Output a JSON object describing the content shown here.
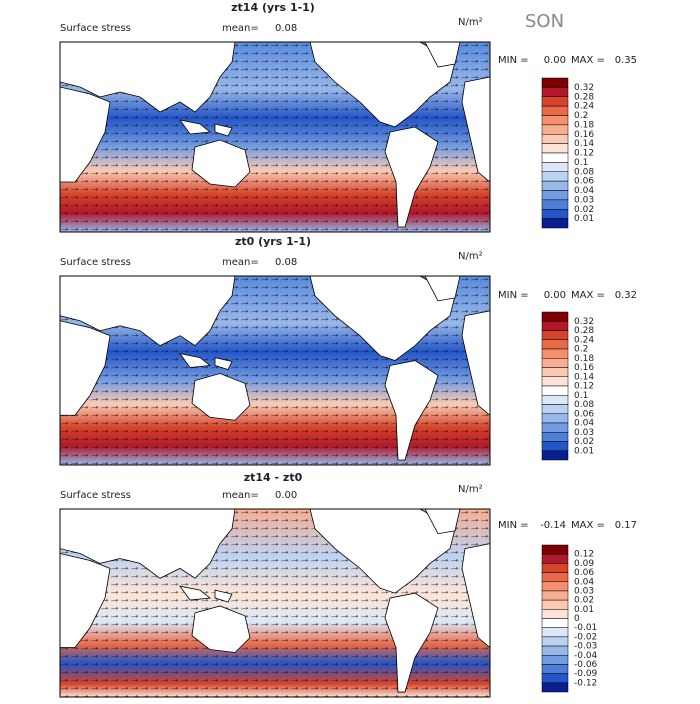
{
  "season": "SON",
  "panels": [
    {
      "title": "zt14 (yrs 1-1)",
      "subtitle": "Surface stress",
      "mean_label": "mean=",
      "mean": "0.08",
      "units": "N/m²",
      "min_label": "MIN =",
      "min": "0.00",
      "max_label": "MAX =",
      "max": "0.35",
      "colorbar": {
        "labels": [
          "0.32",
          "0.28",
          "0.24",
          "0.2",
          "0.18",
          "0.16",
          "0.14",
          "0.12",
          "0.1",
          "0.08",
          "0.06",
          "0.04",
          "0.03",
          "0.02",
          "0.01"
        ],
        "colors": [
          "#7f0000",
          "#b2182b",
          "#d6452b",
          "#ea6a48",
          "#f4906f",
          "#f8ae92",
          "#fbcab4",
          "#fde4d6",
          "#ffffff",
          "#dce8f8",
          "#bcd2f2",
          "#98b8ea",
          "#739ce2",
          "#4d7fd8",
          "#2456c8",
          "#0a1f8f"
        ]
      }
    },
    {
      "title": "zt0 (yrs 1-1)",
      "subtitle": "Surface stress",
      "mean_label": "mean=",
      "mean": "0.08",
      "units": "N/m²",
      "min_label": "MIN =",
      "min": "0.00",
      "max_label": "MAX =",
      "max": "0.32",
      "colorbar": {
        "labels": [
          "0.32",
          "0.28",
          "0.24",
          "0.2",
          "0.18",
          "0.16",
          "0.14",
          "0.12",
          "0.1",
          "0.08",
          "0.06",
          "0.04",
          "0.03",
          "0.02",
          "0.01"
        ],
        "colors": [
          "#7f0000",
          "#b2182b",
          "#d6452b",
          "#ea6a48",
          "#f4906f",
          "#f8ae92",
          "#fbcab4",
          "#fde4d6",
          "#ffffff",
          "#dce8f8",
          "#bcd2f2",
          "#98b8ea",
          "#739ce2",
          "#4d7fd8",
          "#2456c8",
          "#0a1f8f"
        ]
      }
    },
    {
      "title": "zt14 - zt0",
      "subtitle": "Surface stress",
      "mean_label": "mean=",
      "mean": "0.00",
      "units": "N/m²",
      "min_label": "MIN =",
      "min": "-0.14",
      "max_label": "MAX =",
      "max": "0.17",
      "colorbar": {
        "labels": [
          "0.12",
          "0.09",
          "0.06",
          "0.04",
          "0.03",
          "0.02",
          "0.01",
          "0",
          "-0.01",
          "-0.02",
          "-0.03",
          "-0.04",
          "-0.06",
          "-0.09",
          "-0.12"
        ],
        "colors": [
          "#7f0000",
          "#b2182b",
          "#d6452b",
          "#ea6a48",
          "#f4906f",
          "#f8ae92",
          "#fbcab4",
          "#fde4d6",
          "#ffffff",
          "#dce8f8",
          "#bcd2f2",
          "#98b8ea",
          "#739ce2",
          "#4d7fd8",
          "#2456c8",
          "#0a1f8f"
        ]
      }
    }
  ]
}
